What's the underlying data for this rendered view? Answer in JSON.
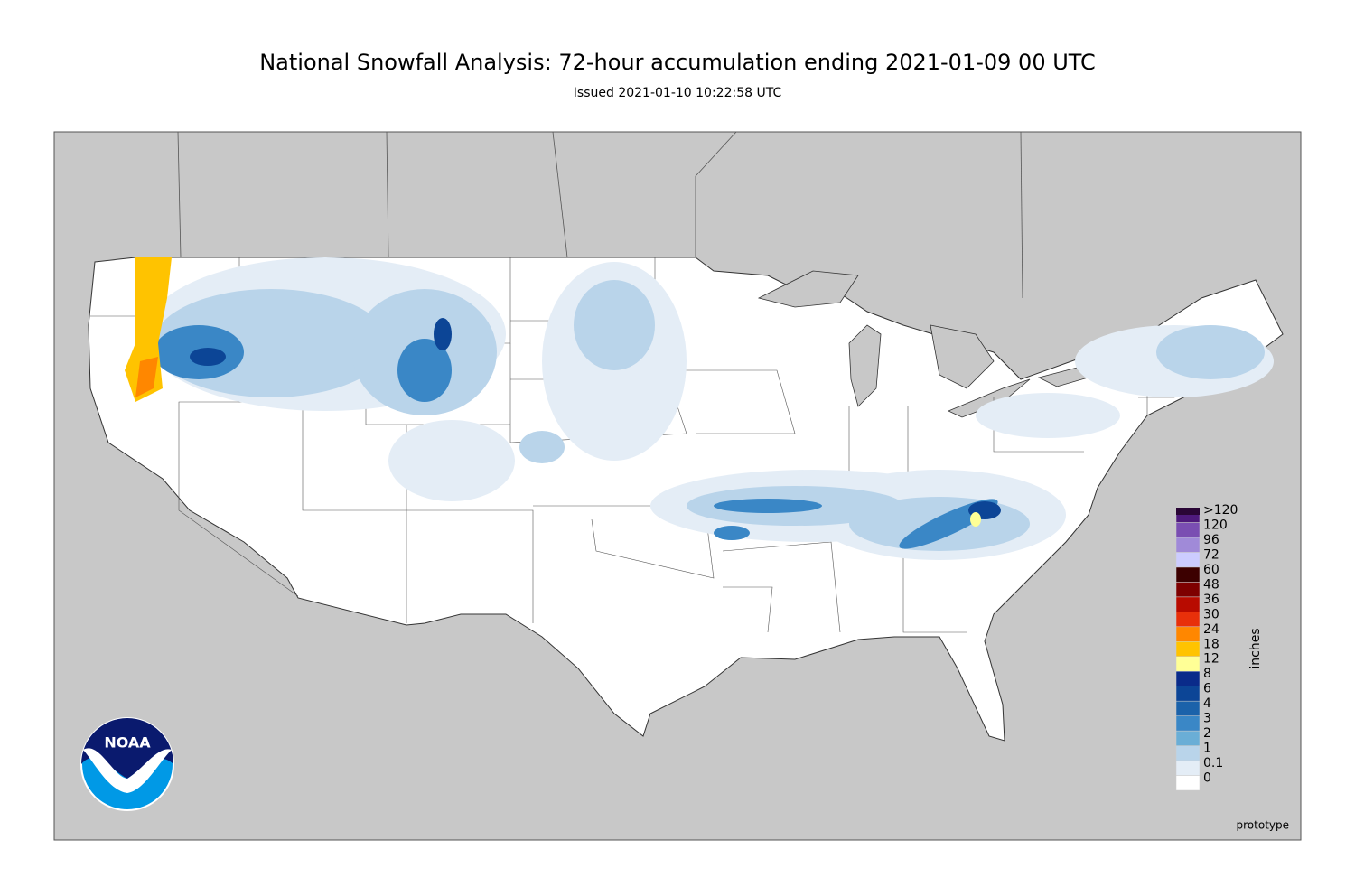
{
  "header": {
    "title": "National Snowfall Analysis: 72-hour accumulation ending 2021-01-09 00 UTC",
    "subtitle": "Issued 2021-01-10 10:22:58 UTC"
  },
  "legend": {
    "unit": "inches",
    "entries": [
      {
        "label": "0",
        "color": "#ffffff"
      },
      {
        "label": "0.1",
        "color": "#e4edf6"
      },
      {
        "label": "1",
        "color": "#b9d4ea"
      },
      {
        "label": "2",
        "color": "#6aaed6"
      },
      {
        "label": "3",
        "color": "#3a87c6"
      },
      {
        "label": "4",
        "color": "#1b62aa"
      },
      {
        "label": "6",
        "color": "#0c4596"
      },
      {
        "label": "8",
        "color": "#0a2b8a"
      },
      {
        "label": "12",
        "color": "#ffff96"
      },
      {
        "label": "18",
        "color": "#ffc300"
      },
      {
        "label": "24",
        "color": "#ff8700"
      },
      {
        "label": "30",
        "color": "#e8300a"
      },
      {
        "label": "36",
        "color": "#b80b00"
      },
      {
        "label": "48",
        "color": "#7e0000"
      },
      {
        "label": "60",
        "color": "#3c0000"
      },
      {
        "label": "72",
        "color": "#ccccff"
      },
      {
        "label": "96",
        "color": "#a08ad8"
      },
      {
        "label": "120",
        "color": "#7a4eb2"
      },
      {
        "label": ">120",
        "color": "#4e1a7c"
      }
    ],
    "top_color": "#2a0636"
  },
  "logo": {
    "text": "NOAA"
  },
  "footer": {
    "note": "prototype"
  }
}
